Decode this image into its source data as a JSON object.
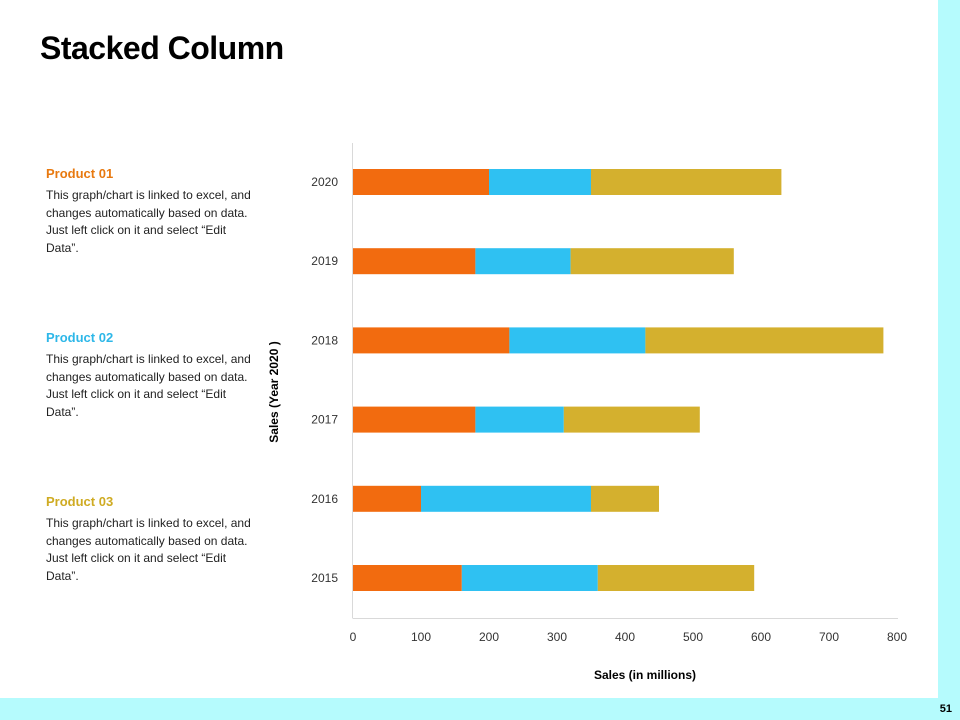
{
  "page": {
    "title": "Stacked Column",
    "page_number": "51"
  },
  "products": [
    {
      "title": "Product 01",
      "color": "#e8790f",
      "description": "This graph/chart is linked to excel, and changes automatically based on data. Just left click on it and select “Edit Data”."
    },
    {
      "title": "Product 02",
      "color": "#2db7e8",
      "description": "This graph/chart is linked to excel, and changes automatically based on data. Just left click on it and select “Edit Data”."
    },
    {
      "title": "Product 03",
      "color": "#cfab22",
      "description": "This graph/chart is linked to excel, and changes automatically based on data. Just left click on it and select “Edit Data”."
    }
  ],
  "chart_data": {
    "type": "bar",
    "orientation": "horizontal",
    "stacked": true,
    "categories": [
      "2015",
      "2016",
      "2017",
      "2018",
      "2019",
      "2020"
    ],
    "series": [
      {
        "color": "#f26b0f",
        "values": [
          160,
          100,
          180,
          230,
          180,
          200
        ]
      },
      {
        "color": "#2fc1f2",
        "values": [
          200,
          250,
          130,
          200,
          140,
          150
        ]
      },
      {
        "color": "#d4b02e",
        "values": [
          230,
          100,
          200,
          350,
          240,
          280
        ]
      }
    ],
    "xlabel": "Sales (in millions)",
    "ylabel": "Sales (Year 2020  )",
    "xlim": [
      0,
      800
    ],
    "xticks": [
      "0",
      "100",
      "200",
      "300",
      "400",
      "500",
      "600",
      "700",
      "800"
    ],
    "grid": false,
    "legend": "none"
  }
}
